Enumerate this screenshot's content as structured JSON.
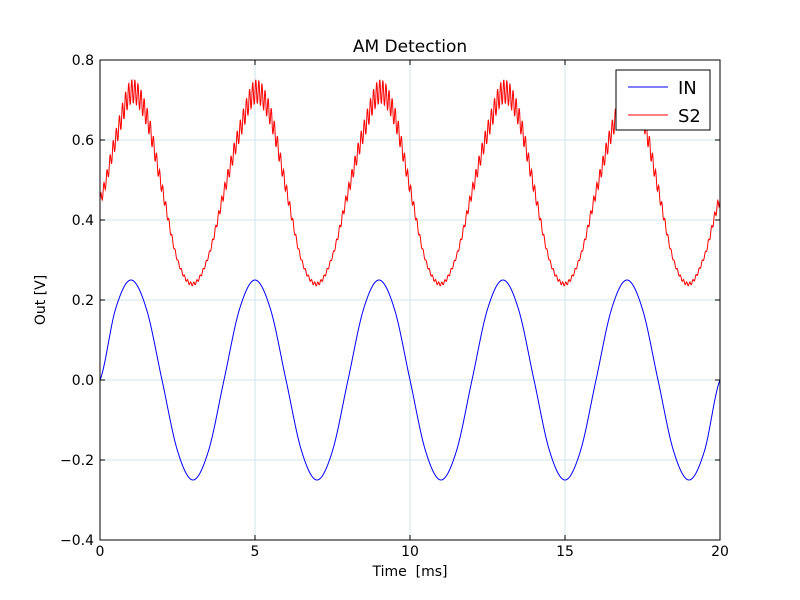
{
  "chart_data": {
    "type": "line",
    "title": "AM Detection",
    "xlabel": "Time  [ms]",
    "ylabel": "Out [V]",
    "xlim": [
      0,
      20
    ],
    "ylim": [
      -0.4,
      0.8
    ],
    "xticks": [
      0,
      5,
      10,
      15,
      20
    ],
    "yticks": [
      -0.4,
      -0.2,
      0.0,
      0.2,
      0.4,
      0.6,
      0.8
    ],
    "xtick_labels": [
      "0",
      "5",
      "10",
      "15",
      "20"
    ],
    "ytick_labels": [
      "−0.4",
      "−0.2",
      "0.0",
      "0.2",
      "0.4",
      "0.6",
      "0.8"
    ],
    "grid": true,
    "legend_position": "top-right",
    "series": [
      {
        "name": "IN",
        "color": "#0000ff",
        "x": [
          0,
          0.5,
          1,
          1.5,
          2,
          2.5,
          3,
          3.5,
          4,
          4.5,
          5,
          5.5,
          6,
          6.5,
          7,
          7.5,
          8,
          8.5,
          9,
          9.5,
          10,
          10.5,
          11,
          11.5,
          12,
          12.5,
          13,
          13.5,
          14,
          14.5,
          15,
          15.5,
          16,
          16.5,
          17,
          17.5,
          18,
          18.5,
          19,
          19.5,
          20
        ],
        "y": [
          0.0,
          0.177,
          0.25,
          0.177,
          0.0,
          -0.177,
          -0.25,
          -0.177,
          0.0,
          0.177,
          0.25,
          0.177,
          0.0,
          -0.177,
          -0.25,
          -0.177,
          0.0,
          0.177,
          0.25,
          0.177,
          0.0,
          -0.177,
          -0.25,
          -0.177,
          0.0,
          0.177,
          0.25,
          0.177,
          0.0,
          -0.177,
          -0.25,
          -0.177,
          0.0,
          0.177,
          0.25,
          0.177,
          0.0,
          -0.177,
          -0.25,
          -0.177,
          0.0
        ]
      },
      {
        "name": "S2",
        "color": "#ff0000",
        "x": [
          0,
          0.5,
          1,
          1.5,
          2,
          2.5,
          3,
          3.5,
          4,
          4.5,
          5,
          5.5,
          6,
          6.5,
          7,
          7.5,
          8,
          8.5,
          9,
          9.5,
          10,
          10.5,
          11,
          11.5,
          12,
          12.5,
          13,
          13.5,
          14,
          14.5,
          15,
          15.5,
          16,
          16.5,
          17,
          17.5,
          18,
          18.5,
          19,
          19.5,
          20
        ],
        "y": [
          0.45,
          0.6,
          0.72,
          0.66,
          0.48,
          0.3,
          0.24,
          0.31,
          0.47,
          0.62,
          0.72,
          0.66,
          0.48,
          0.3,
          0.24,
          0.31,
          0.47,
          0.62,
          0.72,
          0.66,
          0.48,
          0.3,
          0.24,
          0.31,
          0.47,
          0.62,
          0.72,
          0.66,
          0.48,
          0.3,
          0.24,
          0.31,
          0.47,
          0.62,
          0.72,
          0.66,
          0.48,
          0.3,
          0.24,
          0.31,
          0.45
        ],
        "ripple_peak_to_peak": 0.06
      }
    ]
  }
}
